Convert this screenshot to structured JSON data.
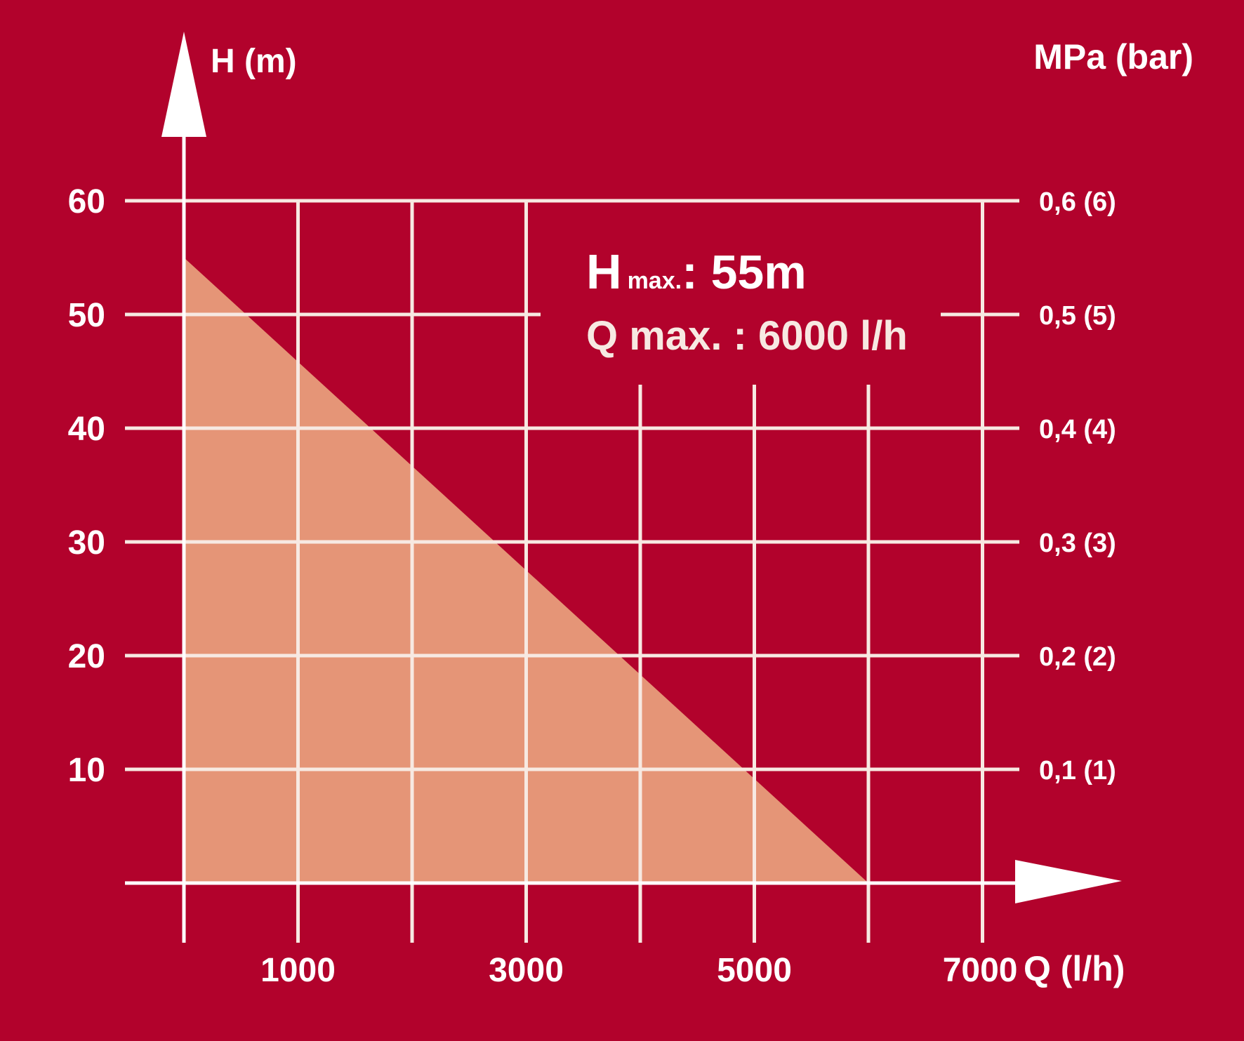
{
  "colors": {
    "background": "#b2022c",
    "fill": "#e59577",
    "grid": "#f7e9e2",
    "text": "#ffffff",
    "frame": "#ffffff"
  },
  "chart_data": {
    "type": "area",
    "xlabel": "Q (l/h)",
    "ylabel": "H (m)",
    "y2label": "MPa (bar)",
    "xlim": [
      0,
      7000
    ],
    "ylim": [
      0,
      60
    ],
    "x_ticks": [
      1000,
      3000,
      5000,
      7000
    ],
    "x_tick_labels": [
      "1000",
      "3000",
      "5000",
      "7000"
    ],
    "y_ticks": [
      10,
      20,
      30,
      40,
      50,
      60
    ],
    "y_tick_labels": [
      "10",
      "20",
      "30",
      "40",
      "50",
      "60"
    ],
    "y2_ticks": [
      10,
      20,
      30,
      40,
      50,
      60
    ],
    "y2_tick_labels": [
      "0,1 (1)",
      "0,2 (2)",
      "0,3 (3)",
      "0,4 (4)",
      "0,5 (5)",
      "0,6 (6)"
    ],
    "grid": true,
    "x_gridlines": [
      1000,
      2000,
      3000,
      4000,
      5000,
      6000,
      7000
    ],
    "series": [
      {
        "x": [
          0,
          6000
        ],
        "y": [
          55,
          0
        ]
      }
    ],
    "annotations": {
      "hmax_main": "H",
      "hmax_sub": "max.",
      "hmax_value": ": 55m",
      "qmax": "Q max. : 6000 l/h"
    }
  }
}
